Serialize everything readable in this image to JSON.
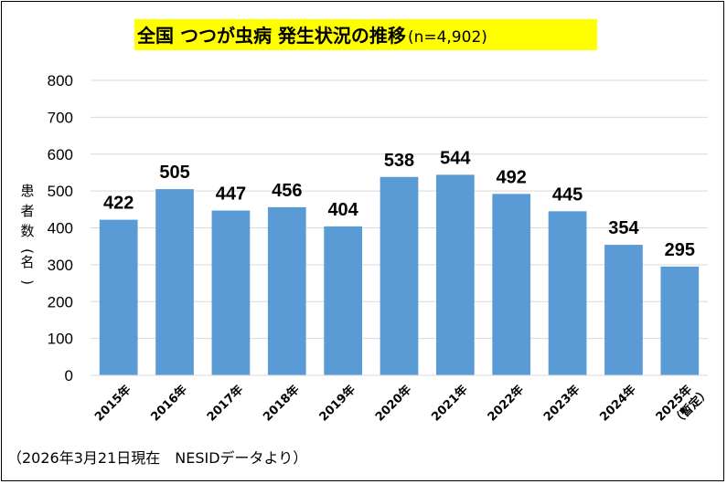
{
  "colors": {
    "bar": "#5b9bd5",
    "grid": "#d9d9d9",
    "title_highlight": "#ffff00",
    "text": "#000000"
  },
  "chart_data": {
    "type": "bar",
    "title": "全国 つつが虫病 発生状況の推移",
    "title_suffix": "(n=4,902)",
    "ylabel": "患者数(名)",
    "ylim": [
      0,
      800
    ],
    "yticks": [
      0,
      100,
      200,
      300,
      400,
      500,
      600,
      700,
      800
    ],
    "grid": true,
    "categories": [
      "2015年",
      "2016年",
      "2017年",
      "2018年",
      "2019年",
      "2020年",
      "2021年",
      "2022年",
      "2023年",
      "2024年",
      "2025年"
    ],
    "category_notes": [
      "",
      "",
      "",
      "",
      "",
      "",
      "",
      "",
      "",
      "",
      "（暫定）"
    ],
    "values": [
      422,
      505,
      447,
      456,
      404,
      538,
      544,
      492,
      445,
      354,
      295
    ],
    "footnote": "（2026年3月21日現在　NESIDデータより）"
  }
}
